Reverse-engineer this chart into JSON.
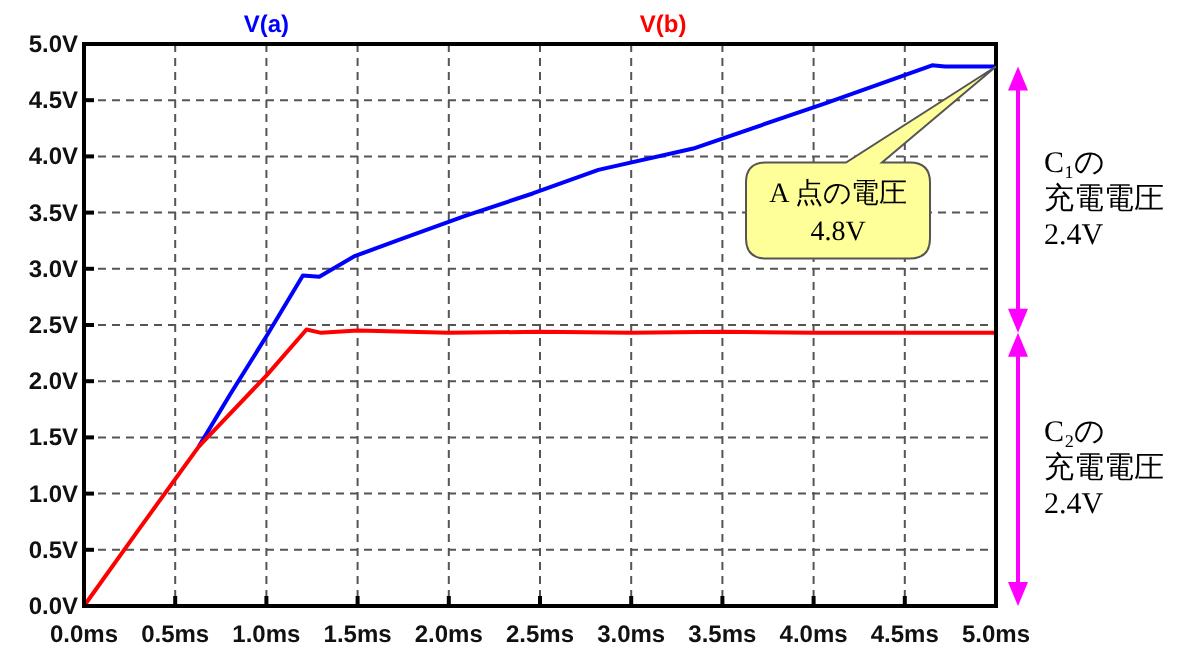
{
  "chart_data": {
    "type": "line",
    "xlim": [
      0,
      5.0
    ],
    "ylim": [
      0,
      5.0
    ],
    "xticks": [
      {
        "value": 0,
        "label": "0.0ms"
      },
      {
        "value": 0.5,
        "label": "0.5ms"
      },
      {
        "value": 1.0,
        "label": "1.0ms"
      },
      {
        "value": 1.5,
        "label": "1.5ms"
      },
      {
        "value": 2.0,
        "label": "2.0ms"
      },
      {
        "value": 2.5,
        "label": "2.5ms"
      },
      {
        "value": 3.0,
        "label": "3.0ms"
      },
      {
        "value": 3.5,
        "label": "3.5ms"
      },
      {
        "value": 4.0,
        "label": "4.0ms"
      },
      {
        "value": 4.5,
        "label": "4.5ms"
      },
      {
        "value": 5.0,
        "label": "5.0ms"
      }
    ],
    "yticks": [
      {
        "value": 0,
        "label": "0.0V"
      },
      {
        "value": 0.5,
        "label": "0.5V"
      },
      {
        "value": 1.0,
        "label": "1.0V"
      },
      {
        "value": 1.5,
        "label": "1.5V"
      },
      {
        "value": 2.0,
        "label": "2.0V"
      },
      {
        "value": 2.5,
        "label": "2.5V"
      },
      {
        "value": 3.0,
        "label": "3.0V"
      },
      {
        "value": 3.5,
        "label": "3.5V"
      },
      {
        "value": 4.0,
        "label": "4.0V"
      },
      {
        "value": 4.5,
        "label": "4.5V"
      },
      {
        "value": 5.0,
        "label": "5.0V"
      }
    ],
    "grid": true,
    "legend": "top",
    "line_style": "solid",
    "series": [
      {
        "name": "V(a)",
        "color": "#0000ff",
        "x": [
          0.63,
          0.8,
          1.0,
          1.2,
          1.29,
          1.48,
          1.73,
          2.09,
          2.46,
          2.82,
          3.34,
          4.06,
          4.65,
          4.72,
          5.0
        ],
        "values": [
          1.42,
          1.88,
          2.4,
          2.94,
          2.93,
          3.11,
          3.26,
          3.47,
          3.67,
          3.88,
          4.07,
          4.47,
          4.81,
          4.8,
          4.8
        ]
      },
      {
        "name": "V(b)",
        "color": "#ff0000",
        "x": [
          0,
          0.3,
          0.63,
          1.0,
          1.22,
          1.3,
          1.5,
          2.0,
          2.5,
          3.0,
          3.5,
          4.0,
          4.65,
          5.0
        ],
        "values": [
          0,
          0.68,
          1.42,
          2.05,
          2.46,
          2.43,
          2.45,
          2.43,
          2.44,
          2.43,
          2.44,
          2.43,
          2.43,
          2.43
        ]
      }
    ],
    "annotations": [
      "A 点の電圧\n4.8V",
      "C₁の充電電圧\n2.4V",
      "C₂の充電電圧\n2.4V"
    ]
  }
}
